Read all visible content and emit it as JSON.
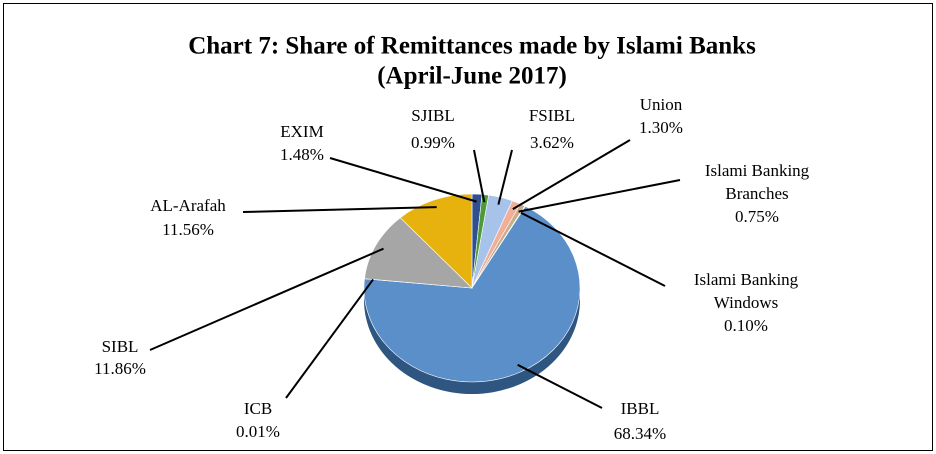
{
  "chart_data": {
    "type": "pie",
    "title": "Chart 7: Share of Remittances made by Islami Banks",
    "subtitle": "(April-June  2017)",
    "categories": [
      "EXIM",
      "SJIBL",
      "FSIBL",
      "Union",
      "Islami Banking Branches",
      "Islami Banking Windows",
      "IBBL",
      "ICB",
      "SIBL",
      "AL-Arafah"
    ],
    "values": [
      1.48,
      0.99,
      3.62,
      1.3,
      0.75,
      0.1,
      68.34,
      0.01,
      11.86,
      11.56
    ],
    "value_labels": [
      "1.48%",
      "0.99%",
      "3.62%",
      "1.30%",
      "0.75%",
      "0.10%",
      "68.34%",
      "0.01%",
      "11.86%",
      "11.56%"
    ],
    "colors": [
      "#2f4f8f",
      "#4e9a3a",
      "#a7c3ea",
      "#f2ae98",
      "#c8ae8a",
      "#8aa6d6",
      "#5b8fc9",
      "#8b4a2b",
      "#a6a6a6",
      "#e8b20e"
    ]
  }
}
